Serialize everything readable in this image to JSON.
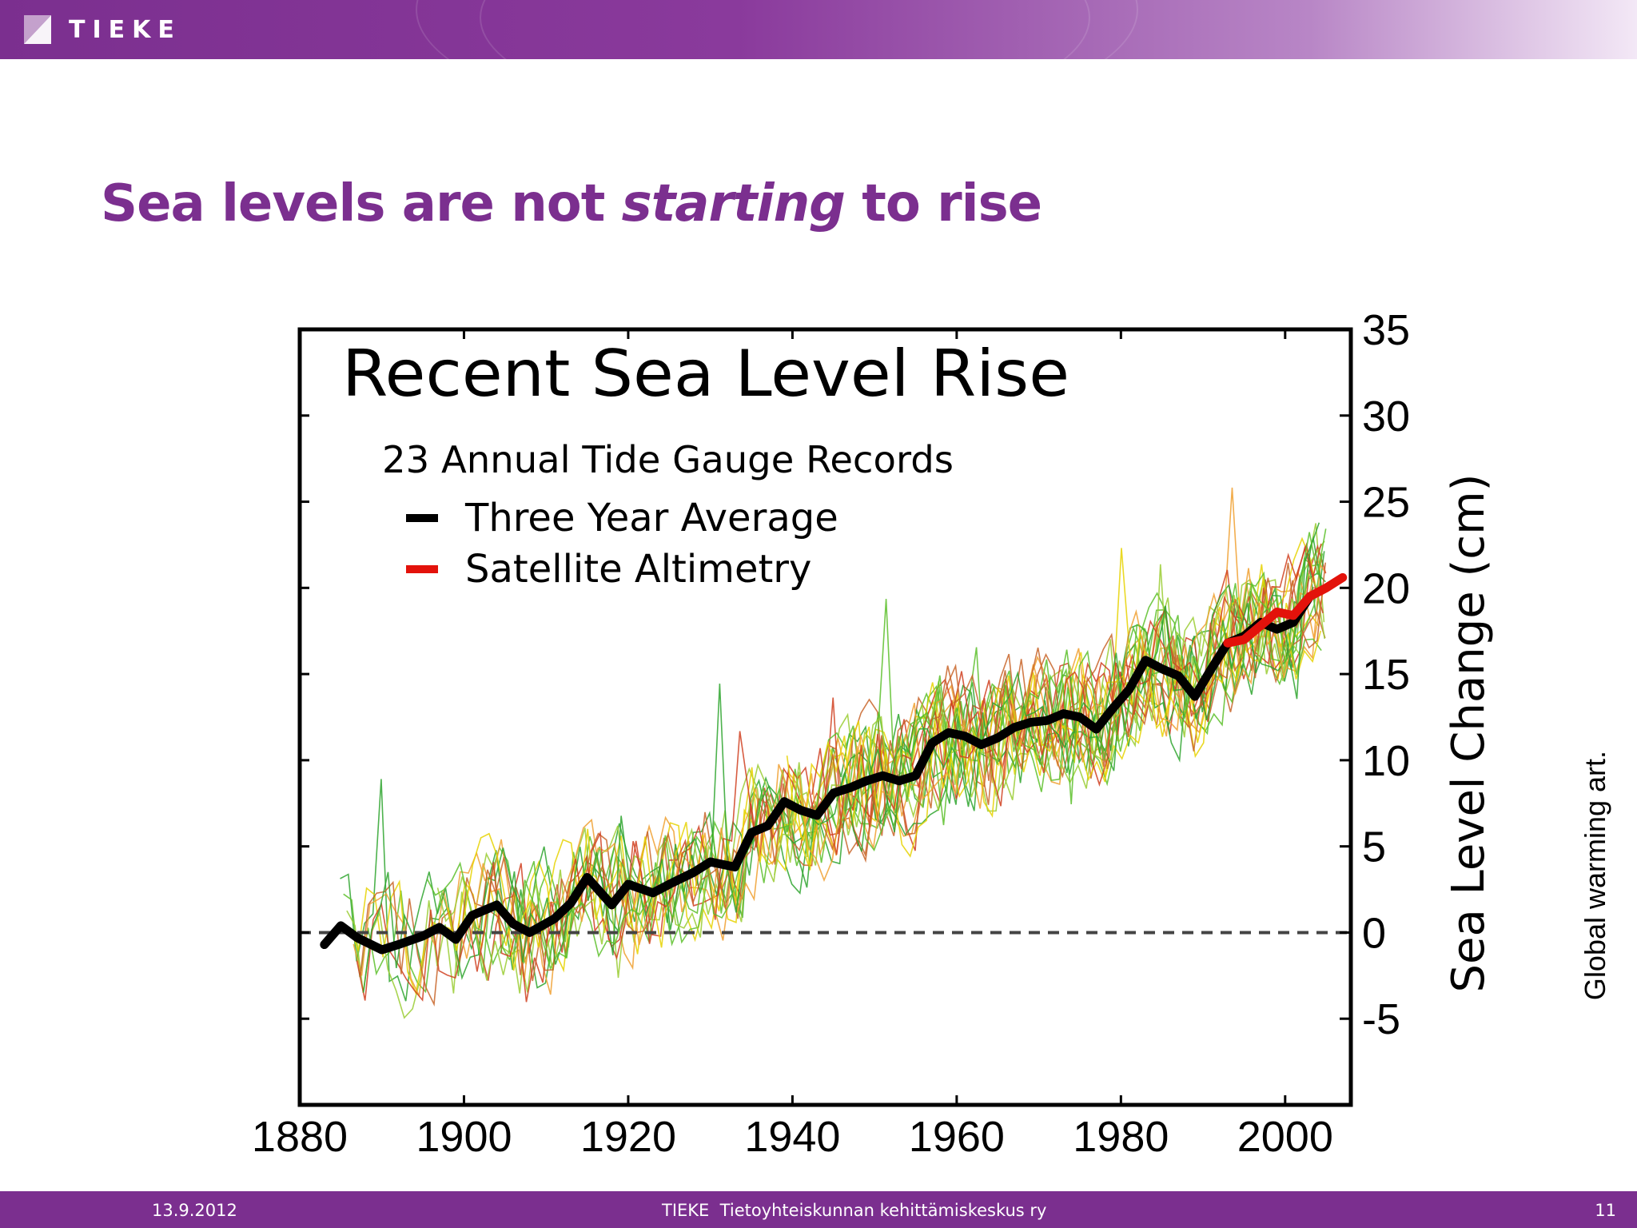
{
  "header": {
    "logo_text": "TIEKE"
  },
  "slide": {
    "title_part1": "Sea levels are not ",
    "title_emphasis": "starting",
    "title_part2": " to rise",
    "side_note": "Global warming art."
  },
  "footer": {
    "date": "13.9.2012",
    "organization": "TIEKE  Tietoyhteiskunnan kehittämiskeskus ry",
    "page_number": "11"
  },
  "colors": {
    "brand_purple": "#7b2f8f",
    "average_line": "#000000",
    "satellite_line": "#e3120b",
    "gauge_lines": [
      "#2ea52e",
      "#5cbf2a",
      "#9acd32",
      "#e6d200",
      "#f0a030",
      "#d04020",
      "#c86428"
    ]
  },
  "chart_data": {
    "type": "line",
    "title": "Recent Sea Level Rise",
    "subtitle": "23 Annual Tide Gauge Records",
    "xlabel": "",
    "ylabel": "Sea Level Change (cm)",
    "xlim": [
      1880,
      2008
    ],
    "ylim": [
      -10,
      35
    ],
    "x_ticks": [
      1880,
      1900,
      1920,
      1940,
      1960,
      1980,
      2000
    ],
    "y_ticks": [
      -5,
      0,
      5,
      10,
      15,
      20,
      25,
      30,
      35
    ],
    "reference_line": 0,
    "legend_position": "top-left",
    "legend": [
      "Three Year Average",
      "Satellite Altimetry"
    ],
    "series": [
      {
        "name": "Three Year Average",
        "x": [
          1883,
          1885,
          1887,
          1890,
          1892,
          1895,
          1897,
          1899,
          1901,
          1904,
          1906,
          1908,
          1911,
          1913,
          1915,
          1918,
          1920,
          1923,
          1925,
          1928,
          1930,
          1933,
          1935,
          1937,
          1939,
          1941,
          1943,
          1945,
          1947,
          1949,
          1951,
          1953,
          1955,
          1957,
          1959,
          1961,
          1963,
          1965,
          1967,
          1969,
          1971,
          1973,
          1975,
          1977,
          1979,
          1981,
          1983,
          1985,
          1987,
          1989,
          1991,
          1993,
          1995,
          1997,
          1999,
          2001,
          2003
        ],
        "y": [
          -0.7,
          0.4,
          -0.3,
          -1.0,
          -0.7,
          -0.2,
          0.3,
          -0.4,
          1.0,
          1.6,
          0.5,
          0.0,
          0.8,
          1.7,
          3.2,
          1.6,
          2.8,
          2.3,
          2.8,
          3.5,
          4.1,
          3.8,
          5.8,
          6.2,
          7.6,
          7.1,
          6.8,
          8.1,
          8.4,
          8.8,
          9.1,
          8.8,
          9.1,
          11.0,
          11.6,
          11.4,
          10.9,
          11.3,
          11.9,
          12.2,
          12.3,
          12.7,
          12.5,
          11.8,
          13.0,
          14.1,
          15.8,
          15.3,
          14.9,
          13.7,
          15.3,
          16.8,
          17.2,
          18.0,
          17.6,
          18.0,
          19.5
        ]
      },
      {
        "name": "Satellite Altimetry",
        "x": [
          1993,
          1995,
          1997,
          1999,
          2001,
          2003,
          2005,
          2007
        ],
        "y": [
          16.8,
          17.0,
          17.8,
          18.6,
          18.4,
          19.5,
          20.0,
          20.6
        ]
      }
    ]
  }
}
